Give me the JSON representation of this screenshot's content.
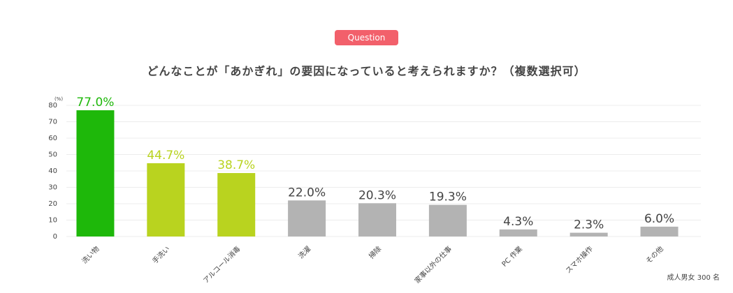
{
  "badge": "Question",
  "chart_data": {
    "type": "bar",
    "title": "どんなことが「あかぎれ」の要因になっていると考えられますか？（複数選択可）",
    "y_unit": "(%)",
    "categories": [
      "洗い物",
      "手洗い",
      "アルコール消毒",
      "洗濯",
      "掃除",
      "家事以外の仕事",
      "PC 作業",
      "スマホ操作",
      "その他"
    ],
    "values": [
      77.0,
      44.7,
      38.7,
      22.0,
      20.3,
      19.3,
      4.3,
      2.3,
      6.0
    ],
    "value_labels": [
      "77.0%",
      "44.7%",
      "38.7%",
      "22.0%",
      "20.3%",
      "19.3%",
      "4.3%",
      "2.3%",
      "6.0%"
    ],
    "colors": [
      "#1eb80a",
      "#b9d31f",
      "#b9d31f",
      "#b3b3b3",
      "#b3b3b3",
      "#b3b3b3",
      "#b3b3b3",
      "#b3b3b3",
      "#b3b3b3"
    ],
    "ylim": [
      0,
      80
    ],
    "yticks": [
      0,
      10,
      20,
      30,
      40,
      50,
      60,
      70,
      80
    ],
    "grid": true
  },
  "footnote": "成人男女 300 名"
}
